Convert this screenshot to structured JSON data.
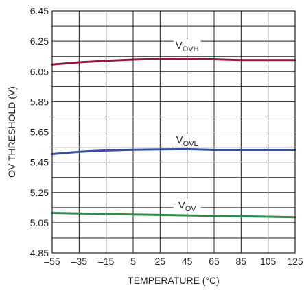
{
  "chart_data": {
    "type": "line",
    "xlabel": "TEMPERATURE (°C)",
    "ylabel": "OV THRESHOLD (V)",
    "xlim": [
      -55,
      125
    ],
    "ylim": [
      4.85,
      6.45
    ],
    "x_ticks": [
      "–55",
      "–35",
      "–15",
      "5",
      "25",
      "45",
      "65",
      "85",
      "105",
      "125"
    ],
    "y_ticks": [
      "4.85",
      "5.05",
      "5.25",
      "5.45",
      "5.65",
      "5.85",
      "6.05",
      "6.25",
      "6.45"
    ],
    "grid": true,
    "series": [
      {
        "name_main": "V",
        "name_sub": "OVH",
        "color": "#8c1c3c",
        "label_at": [
          45,
          6.2
        ],
        "x": [
          -55,
          -35,
          -15,
          5,
          25,
          45,
          65,
          85,
          105,
          125
        ],
        "y": [
          6.095,
          6.11,
          6.12,
          6.128,
          6.133,
          6.135,
          6.13,
          6.125,
          6.125,
          6.125
        ]
      },
      {
        "name_main": "V",
        "name_sub": "OVL",
        "color": "#3a4f9c",
        "label_at": [
          45,
          5.575
        ],
        "x": [
          -55,
          -35,
          -15,
          5,
          25,
          45,
          65,
          85,
          105,
          125
        ],
        "y": [
          5.505,
          5.52,
          5.528,
          5.533,
          5.536,
          5.537,
          5.532,
          5.532,
          5.532,
          5.532
        ]
      },
      {
        "name_main": "V",
        "name_sub": "OV",
        "color": "#2e8b4a",
        "label_at": [
          45,
          5.145
        ],
        "x": [
          -55,
          -35,
          -15,
          5,
          25,
          45,
          65,
          85,
          105,
          125
        ],
        "y": [
          5.115,
          5.112,
          5.108,
          5.105,
          5.102,
          5.099,
          5.096,
          5.093,
          5.09,
          5.087
        ]
      }
    ]
  }
}
